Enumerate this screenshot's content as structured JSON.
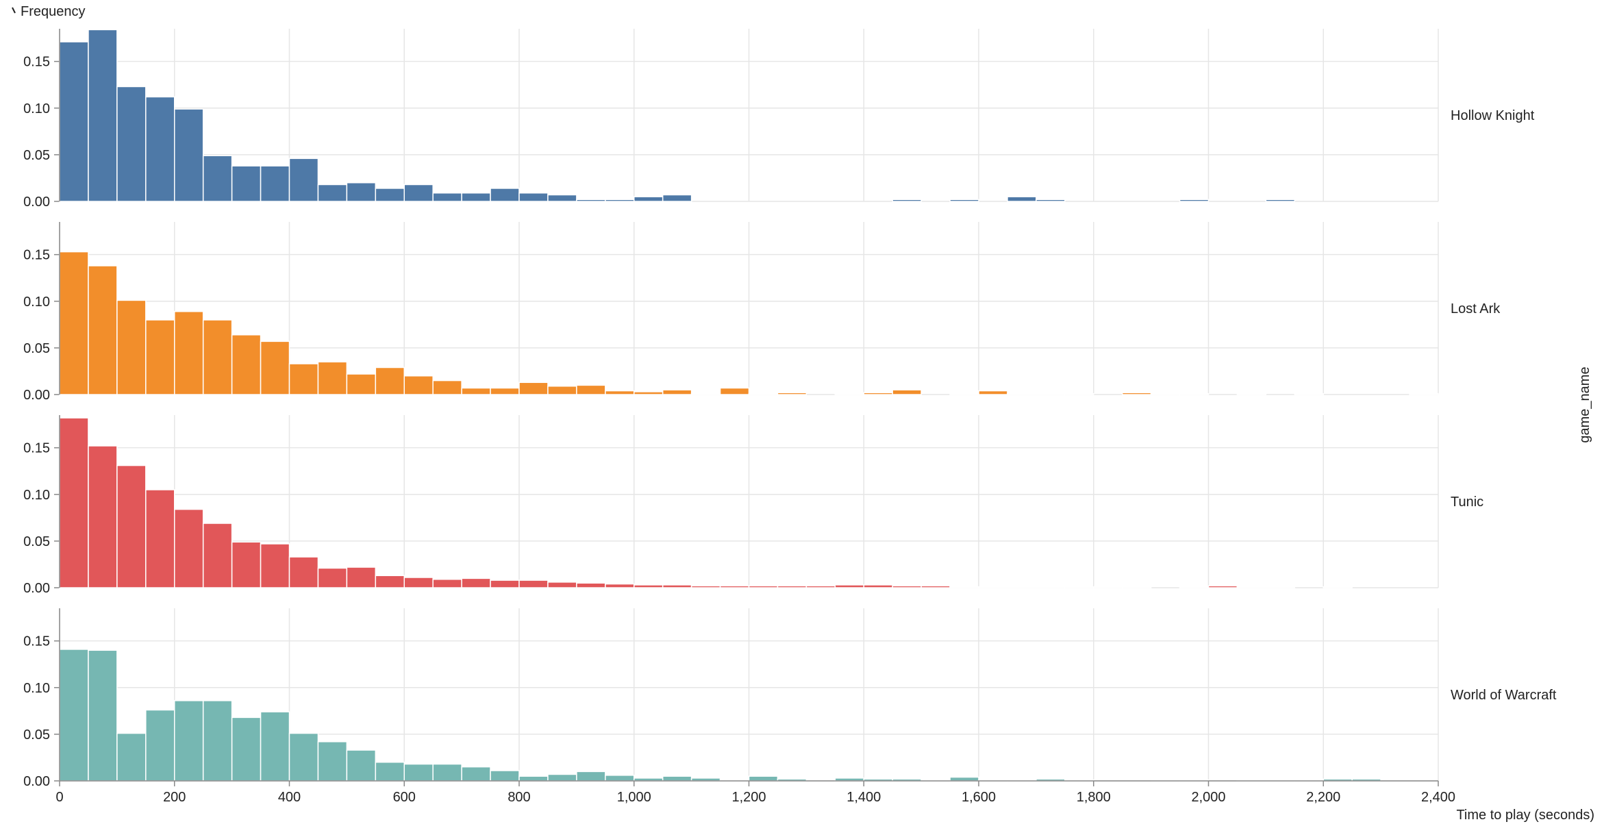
{
  "chart_data": {
    "type": "bar",
    "xlabel": "Time to play (seconds)",
    "ylabel": "Frequency",
    "facet_title": "game_name",
    "bin_width": 50,
    "xlim": [
      0,
      2400
    ],
    "ylim": [
      0,
      0.185
    ],
    "x_ticks": [
      0,
      200,
      400,
      600,
      800,
      1000,
      1200,
      1400,
      1600,
      1800,
      2000,
      2200,
      2400
    ],
    "x_tick_labels": [
      "0",
      "200",
      "400",
      "600",
      "800",
      "1,000",
      "1,200",
      "1,400",
      "1,600",
      "1,800",
      "2,000",
      "2,200",
      "2,400"
    ],
    "y_ticks": [
      0,
      0.05,
      0.1,
      0.15
    ],
    "y_tick_labels": [
      "0.00",
      "0.05",
      "0.10",
      "0.15"
    ],
    "grid": true,
    "series": [
      {
        "name": "Hollow Knight",
        "color": "#4e79a7",
        "values": [
          0.171,
          0.184,
          0.123,
          0.112,
          0.099,
          0.049,
          0.038,
          0.038,
          0.046,
          0.018,
          0.02,
          0.014,
          0.018,
          0.009,
          0.009,
          0.014,
          0.009,
          0.007,
          0.002,
          0.002,
          0.005,
          0.007,
          0,
          0,
          0,
          0,
          0,
          0,
          0,
          0.002,
          0,
          0.002,
          0,
          0.005,
          0.002,
          0,
          0,
          0,
          0,
          0.002,
          0,
          0,
          0.002,
          0,
          0,
          0,
          0,
          0
        ]
      },
      {
        "name": "Lost Ark",
        "color": "#f28e2b",
        "values": [
          0.153,
          0.138,
          0.101,
          0.08,
          0.089,
          0.08,
          0.064,
          0.057,
          0.033,
          0.035,
          0.022,
          0.029,
          0.02,
          0.015,
          0.007,
          0.007,
          0.013,
          0.009,
          0.01,
          0.004,
          0.003,
          0.005,
          0.001,
          0.007,
          0.001,
          0.002,
          0,
          0.001,
          0.002,
          0.005,
          0,
          0.001,
          0.004,
          0.001,
          0.001,
          0.001,
          0,
          0.002,
          0.001,
          0.001,
          0,
          0.001,
          0,
          0.001,
          0,
          0,
          0,
          0.001
        ]
      },
      {
        "name": "Tunic",
        "color": "#e15759",
        "values": [
          0.182,
          0.152,
          0.131,
          0.105,
          0.084,
          0.069,
          0.049,
          0.047,
          0.033,
          0.021,
          0.022,
          0.013,
          0.011,
          0.009,
          0.01,
          0.008,
          0.008,
          0.006,
          0.005,
          0.004,
          0.003,
          0.003,
          0.002,
          0.002,
          0.002,
          0.002,
          0.002,
          0.003,
          0.003,
          0.002,
          0.002,
          0.001,
          0.001,
          0.001,
          0.001,
          0.001,
          0.001,
          0.001,
          0,
          0.001,
          0.002,
          0.001,
          0.001,
          0,
          0.001,
          0,
          0,
          0
        ]
      },
      {
        "name": "World of Warcraft",
        "color": "#76b7b2",
        "values": [
          0.141,
          0.14,
          0.051,
          0.076,
          0.086,
          0.086,
          0.068,
          0.074,
          0.051,
          0.042,
          0.033,
          0.02,
          0.018,
          0.018,
          0.015,
          0.011,
          0.005,
          0.007,
          0.01,
          0.006,
          0.003,
          0.005,
          0.003,
          0.001,
          0.005,
          0.002,
          0,
          0.003,
          0.002,
          0.002,
          0.001,
          0.004,
          0.001,
          0.001,
          0.002,
          0.001,
          0,
          0,
          0.001,
          0.001,
          0,
          0.001,
          0.001,
          0.001,
          0.002,
          0.002,
          0,
          0
        ]
      }
    ]
  }
}
